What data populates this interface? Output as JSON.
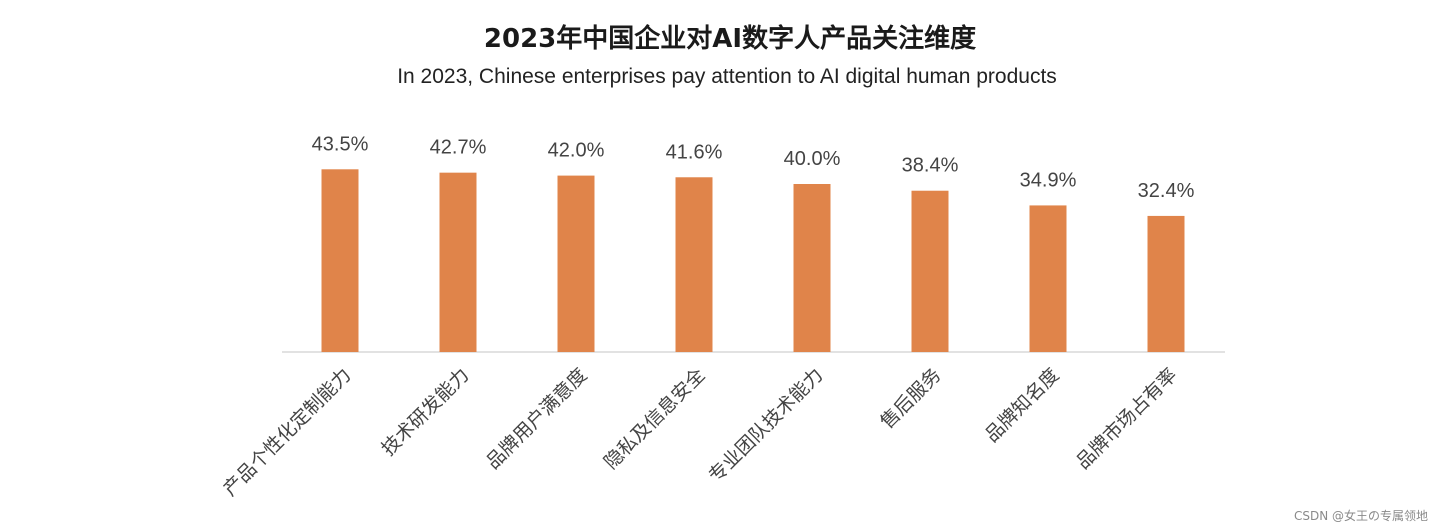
{
  "chart_data": {
    "type": "bar",
    "title": "2023年中国企业对AI数字人产品关注维度",
    "subtitle": "In 2023, Chinese enterprises pay attention to AI digital human products",
    "categories": [
      "产品个性化定制能力",
      "技术研发能力",
      "品牌用户满意度",
      "隐私及信息安全",
      "专业团队技术能力",
      "售后服务",
      "品牌知名度",
      "品牌市场占有率"
    ],
    "values": [
      43.5,
      42.7,
      42.0,
      41.6,
      40.0,
      38.4,
      34.9,
      32.4
    ],
    "value_labels": [
      "43.5%",
      "42.7%",
      "42.0%",
      "41.6%",
      "40.0%",
      "38.4%",
      "34.9%",
      "32.4%"
    ],
    "unit": "%",
    "ylim": [
      0,
      50
    ],
    "grid": false,
    "legend": "none",
    "bar_color": "#E0844A",
    "axis_color": "#D9D9D9"
  },
  "watermark": "CSDN @女王の专属领地"
}
